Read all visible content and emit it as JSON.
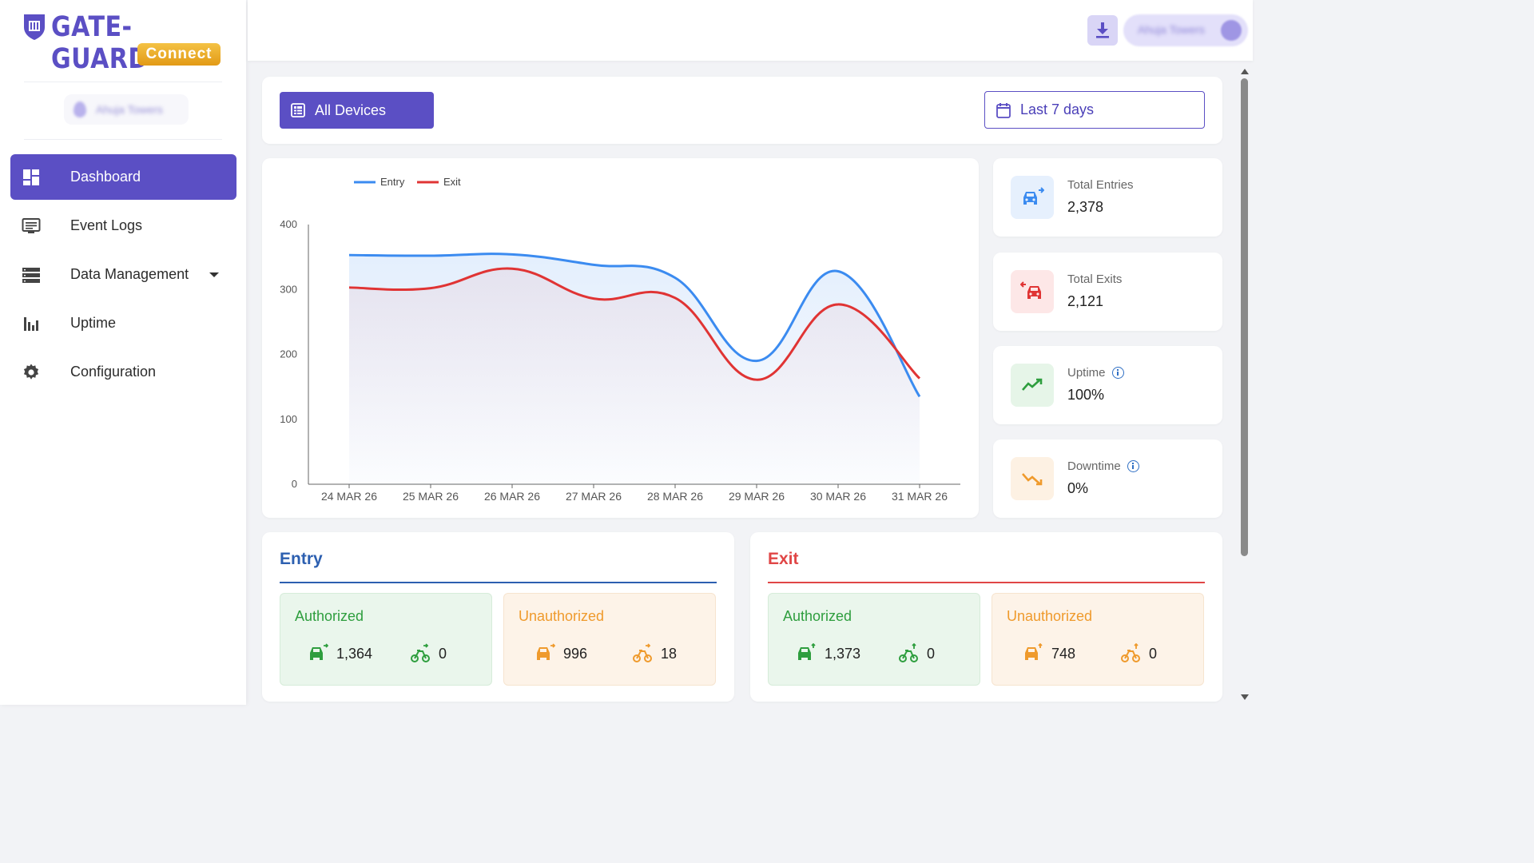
{
  "brand": {
    "name": "GATE-GUARD",
    "sub": "Connect",
    "color": "#5b4fc4"
  },
  "sidebar": {
    "site_name": "Ahuja Towers",
    "items": [
      {
        "label": "Dashboard",
        "icon": "dashboard-icon",
        "active": true
      },
      {
        "label": "Event Logs",
        "icon": "event-logs-icon"
      },
      {
        "label": "Data Management",
        "icon": "data-management-icon",
        "has_dropdown": true
      },
      {
        "label": "Uptime",
        "icon": "uptime-icon"
      },
      {
        "label": "Configuration",
        "icon": "gear-icon"
      }
    ]
  },
  "topbar": {
    "user_name": "Ahuja Towers",
    "download_icon": "download-icon"
  },
  "filters": {
    "device_label": "All Devices",
    "date_label": "Last 7 days"
  },
  "chart_data": {
    "type": "area",
    "x": [
      "24 MAR 26",
      "25 MAR 26",
      "26 MAR 26",
      "27 MAR 26",
      "28 MAR 26",
      "29 MAR 26",
      "30 MAR 26",
      "31 MAR 26"
    ],
    "series": [
      {
        "name": "Entry",
        "color": "#3b8bf0",
        "values": [
          353,
          352,
          354,
          338,
          318,
          190,
          328,
          135
        ]
      },
      {
        "name": "Exit",
        "color": "#e03434",
        "values": [
          303,
          302,
          332,
          286,
          287,
          161,
          277,
          163
        ]
      }
    ],
    "ylim": [
      0,
      400
    ],
    "yticks": [
      0,
      100,
      200,
      300,
      400
    ],
    "legend": "top-left",
    "grid": false
  },
  "stats": [
    {
      "label": "Total Entries",
      "value": "2,378",
      "icon": "car-entry-icon",
      "color": "#3b8bf0",
      "bg": "#e6f0fd"
    },
    {
      "label": "Total Exits",
      "value": "2,121",
      "icon": "car-exit-icon",
      "color": "#e03434",
      "bg": "#fde7e7"
    },
    {
      "label": "Uptime",
      "value": "100%",
      "icon": "trend-up-icon",
      "color": "#2e9e3e",
      "bg": "#e6f5e8",
      "info": true
    },
    {
      "label": "Downtime",
      "value": "0%",
      "icon": "trend-down-icon",
      "color": "#ef9a2c",
      "bg": "#fdf1e3",
      "info": true
    }
  ],
  "summary": {
    "entry": {
      "title": "Entry",
      "authorized": {
        "title": "Authorized",
        "cars": "1,364",
        "bikes": "0"
      },
      "unauthorized": {
        "title": "Unauthorized",
        "cars": "996",
        "bikes": "18"
      }
    },
    "exit": {
      "title": "Exit",
      "authorized": {
        "title": "Authorized",
        "cars": "1,373",
        "bikes": "0"
      },
      "unauthorized": {
        "title": "Unauthorized",
        "cars": "748",
        "bikes": "0"
      }
    }
  },
  "colors": {
    "primary": "#5b4fc4",
    "entry": "#2c5fb0",
    "exit": "#e04646",
    "authorized": "#2e9e3e",
    "unauthorized": "#ef9a2c"
  }
}
